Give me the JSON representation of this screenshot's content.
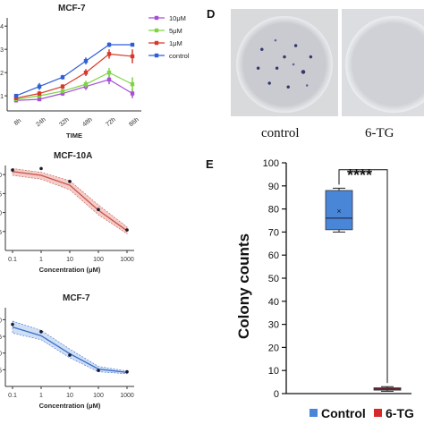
{
  "panel_letters": {
    "d": "D",
    "e": "E"
  },
  "photo_labels": [
    "control",
    "6-TG"
  ],
  "chart_data": [
    {
      "type": "line",
      "title": "MCF-7",
      "xlabel": "TIME",
      "ylabel": "",
      "categories": [
        "8h",
        "24h",
        "32h",
        "48h",
        "72h",
        "86h"
      ],
      "yticks": [
        "0",
        "1",
        "2",
        "3",
        "4"
      ],
      "ylim": [
        0.35,
        4.2
      ],
      "legend_position": "top-right",
      "series": [
        {
          "name": "10μM",
          "color": "#a64ed6",
          "values": [
            0.8,
            0.85,
            1.1,
            1.4,
            1.7,
            1.1
          ],
          "errors": [
            0.05,
            0.08,
            0.1,
            0.15,
            0.2,
            0.2
          ]
        },
        {
          "name": "5μM",
          "color": "#7fd344",
          "values": [
            0.85,
            1.0,
            1.2,
            1.5,
            2.0,
            1.5
          ],
          "errors": [
            0.05,
            0.08,
            0.1,
            0.15,
            0.2,
            0.3
          ]
        },
        {
          "name": "1μM",
          "color": "#d6392b",
          "values": [
            0.9,
            1.1,
            1.4,
            2.0,
            2.8,
            2.7
          ],
          "errors": [
            0.05,
            0.1,
            0.1,
            0.15,
            0.2,
            0.3
          ]
        },
        {
          "name": "control",
          "color": "#2f5fd6",
          "values": [
            1.0,
            1.4,
            1.8,
            2.5,
            3.2,
            3.2
          ],
          "errors": [
            0.05,
            0.15,
            0.1,
            0.15,
            0.1,
            0.05
          ]
        }
      ]
    },
    {
      "type": "line",
      "title": "MCF-10A",
      "xlabel": "Concentration (μM)",
      "ylabel": "",
      "x": [
        0.1,
        1,
        10,
        100,
        1000
      ],
      "xtick_labels": [
        "0.1",
        "1",
        "10",
        "100",
        "1000"
      ],
      "yticks": [
        "25",
        "50",
        "75",
        "00"
      ],
      "ylim": [
        0,
        112
      ],
      "fit": [
        {
          "x": 0.1,
          "y": 104,
          "lo": 99,
          "hi": 108
        },
        {
          "x": 1,
          "y": 99,
          "lo": 94,
          "hi": 103
        },
        {
          "x": 10,
          "y": 86,
          "lo": 80,
          "hi": 92
        },
        {
          "x": 100,
          "y": 53,
          "lo": 47,
          "hi": 60
        },
        {
          "x": 1000,
          "y": 26,
          "lo": 22,
          "hi": 31
        }
      ],
      "points": [
        {
          "x": 0.1,
          "y": 106
        },
        {
          "x": 1,
          "y": 108
        },
        {
          "x": 10,
          "y": 91
        },
        {
          "x": 100,
          "y": 54
        },
        {
          "x": 1000,
          "y": 27
        }
      ],
      "color": "#c8504a",
      "band_color": "#f4cdc8"
    },
    {
      "type": "line",
      "title": "MCF-7",
      "xlabel": "Concentration (μM)",
      "ylabel": "",
      "x": [
        0.1,
        1,
        10,
        100,
        1000
      ],
      "xtick_labels": [
        "0.1",
        "1",
        "10",
        "100",
        "1000"
      ],
      "yticks": [
        "25",
        "50",
        "75",
        "00"
      ],
      "ylim": [
        0,
        118
      ],
      "fit": [
        {
          "x": 0.1,
          "y": 89,
          "lo": 80,
          "hi": 98
        },
        {
          "x": 1,
          "y": 76,
          "lo": 70,
          "hi": 84
        },
        {
          "x": 10,
          "y": 49,
          "lo": 43,
          "hi": 56
        },
        {
          "x": 100,
          "y": 26,
          "lo": 22,
          "hi": 30
        },
        {
          "x": 1000,
          "y": 21,
          "lo": 19,
          "hi": 23
        }
      ],
      "points": [
        {
          "x": 0.1,
          "y": 93
        },
        {
          "x": 1,
          "y": 82
        },
        {
          "x": 10,
          "y": 47
        },
        {
          "x": 100,
          "y": 24
        },
        {
          "x": 1000,
          "y": 22
        }
      ],
      "color": "#3a6bc9",
      "band_color": "#cfe0f5"
    },
    {
      "type": "box",
      "title": "",
      "xlabel": "",
      "ylabel": "Colony counts",
      "ylim": [
        0,
        100
      ],
      "yticks": [
        "0",
        "10",
        "20",
        "30",
        "40",
        "50",
        "60",
        "70",
        "80",
        "90",
        "100"
      ],
      "significance": "****",
      "legend_position": "bottom",
      "groups": [
        {
          "name": "Control",
          "color": "#4a86d8",
          "min": 70,
          "q1": 71,
          "median": 76,
          "q3": 88,
          "max": 89,
          "mean": 79
        },
        {
          "name": "6-TG",
          "color": "#d42a2a",
          "min": 1,
          "q1": 1.5,
          "median": 2,
          "q3": 2.5,
          "max": 3,
          "mean": 2
        }
      ]
    }
  ]
}
